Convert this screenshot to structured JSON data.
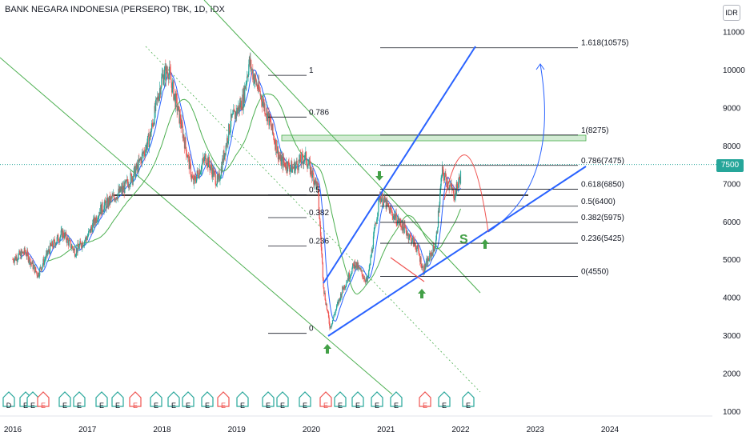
{
  "title": "BANK NEGARA INDONESIA (PERSERO) TBK, 1D, IDX",
  "currency": "IDR",
  "current_price_label": "7500",
  "colors": {
    "up": "#26a69a",
    "down": "#ef5350",
    "ma_fast": "#2962ff",
    "ma_slow": "#4caf50",
    "channel": "#4caf50",
    "trend": "#2962ff",
    "arrow": "#43a047"
  },
  "chart_data": {
    "type": "line",
    "ylim": [
      1000,
      11500
    ],
    "y_ticks": [
      1000,
      2000,
      3000,
      4000,
      5000,
      6000,
      7000,
      8000,
      9000,
      10000,
      11000
    ],
    "x_ticks": [
      "2016",
      "2017",
      "2018",
      "2019",
      "2020",
      "2021",
      "2022",
      "2023",
      "2024"
    ],
    "price_path": [
      [
        "2016-01",
        5000
      ],
      [
        "2016-03",
        5200
      ],
      [
        "2016-05",
        4600
      ],
      [
        "2016-07",
        5300
      ],
      [
        "2016-09",
        5700
      ],
      [
        "2016-11",
        5200
      ],
      [
        "2017-01",
        5600
      ],
      [
        "2017-03",
        6300
      ],
      [
        "2017-05",
        6600
      ],
      [
        "2017-07",
        6900
      ],
      [
        "2017-09",
        7400
      ],
      [
        "2017-11",
        8200
      ],
      [
        "2018-01",
        9800
      ],
      [
        "2018-02",
        10000
      ],
      [
        "2018-04",
        8600
      ],
      [
        "2018-06",
        7000
      ],
      [
        "2018-08",
        7700
      ],
      [
        "2018-10",
        7000
      ],
      [
        "2018-12",
        8600
      ],
      [
        "2019-02",
        9200
      ],
      [
        "2019-03",
        10200
      ],
      [
        "2019-04",
        9700
      ],
      [
        "2019-06",
        8800
      ],
      [
        "2019-08",
        7600
      ],
      [
        "2019-10",
        7400
      ],
      [
        "2019-12",
        7700
      ],
      [
        "2020-02",
        6900
      ],
      [
        "2020-03",
        4200
      ],
      [
        "2020-04",
        3200
      ],
      [
        "2020-06",
        4200
      ],
      [
        "2020-08",
        4900
      ],
      [
        "2020-10",
        4400
      ],
      [
        "2020-12",
        6700
      ],
      [
        "2021-02",
        6200
      ],
      [
        "2021-04",
        5800
      ],
      [
        "2021-06",
        5300
      ],
      [
        "2021-07",
        4700
      ],
      [
        "2021-09",
        5400
      ],
      [
        "2021-10",
        7300
      ],
      [
        "2021-12",
        6700
      ],
      [
        "2022-01",
        7200
      ]
    ],
    "fib_levels_left": [
      "1",
      "0.786",
      "0.5",
      "0.382",
      "0.236",
      "0"
    ],
    "fib_levels_right": [
      "1.618(10575)",
      "1(8275)",
      "0.786(7475)",
      "0.618(6850)",
      "0.5(6400)",
      "0.382(5975)",
      "0.236(5425)",
      "0(4550)"
    ],
    "fib_right_values": [
      10575,
      8275,
      7475,
      6850,
      6400,
      5975,
      5425,
      4550
    ],
    "fib_left_values": [
      9850,
      8750,
      6700,
      6100,
      5350,
      3050
    ],
    "annotations": [
      "S"
    ],
    "event_markers": [
      "D",
      "E",
      "E",
      "E",
      "E",
      "E",
      "E",
      "E",
      "E",
      "E",
      "E",
      "E",
      "E",
      "E",
      "E",
      "E",
      "E",
      "E",
      "E",
      "E",
      "E",
      "E",
      "E",
      "E",
      "E",
      "E"
    ]
  }
}
